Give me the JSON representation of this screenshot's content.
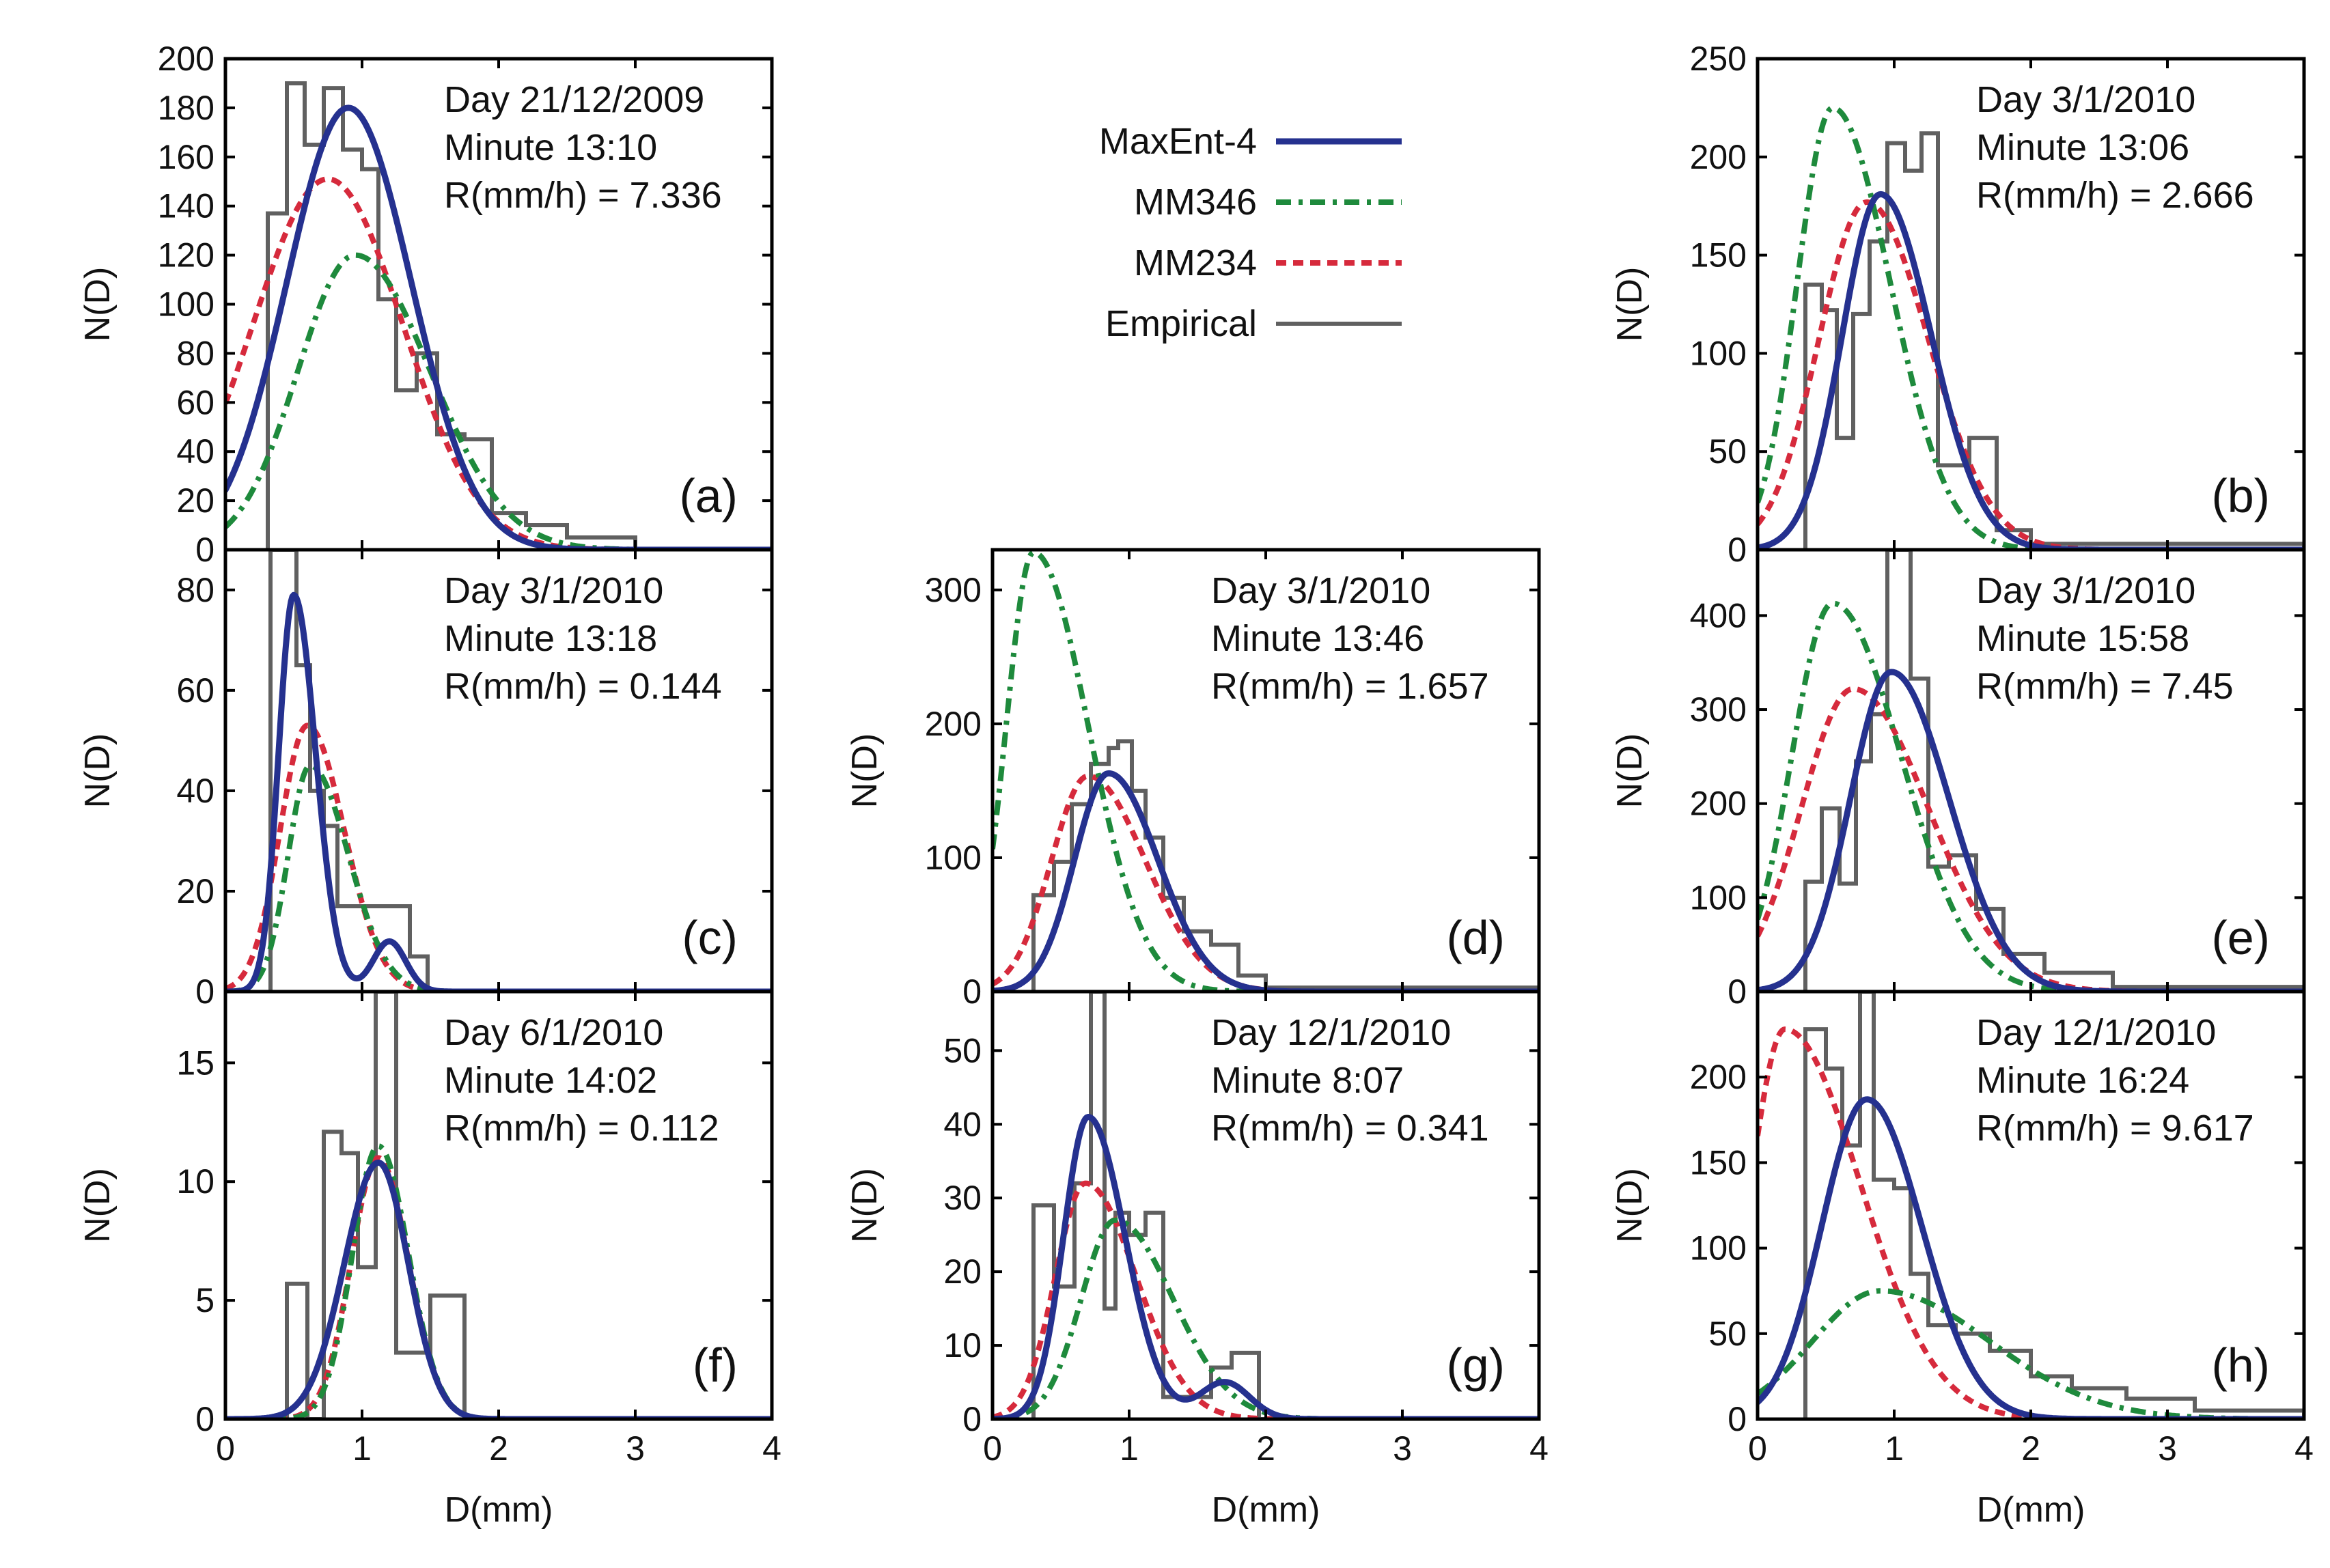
{
  "figure": {
    "xlabel": "D(mm)",
    "ylabel": "N(D)"
  },
  "colors": {
    "MaxEnt-4": "#25318f",
    "MM346": "#1e8a3c",
    "MM234": "#d62a3c",
    "Empirical": "#606060"
  },
  "legend": {
    "location": "top-center",
    "entries": [
      {
        "name": "MaxEnt-4",
        "style": "solid"
      },
      {
        "name": "MM346",
        "style": "dash-dot"
      },
      {
        "name": "MM234",
        "style": "dashed"
      },
      {
        "name": "Empirical",
        "style": "steps"
      }
    ]
  },
  "chart_data": [
    {
      "id": "a",
      "type": "line",
      "panel_label": "(a)",
      "annotation": [
        "Day 21/12/2009",
        "Minute 13:10",
        "R(mm/h) = 7.336"
      ],
      "xlim": [
        0,
        4
      ],
      "xticks": [
        0,
        1,
        2,
        3,
        4
      ],
      "show_xticklabels": false,
      "ylim": [
        0,
        200
      ],
      "yticks": [
        0,
        20,
        40,
        60,
        80,
        100,
        120,
        140,
        160,
        180,
        200
      ],
      "models": {
        "MaxEnt-4": {
          "mode": 0.9,
          "peak": 180,
          "sl": 0.45,
          "sr": 0.46
        },
        "MM346": {
          "mode": 0.95,
          "peak": 120,
          "sl": 0.42,
          "sr": 0.55
        },
        "MM234": {
          "mode": 0.75,
          "peak": 151,
          "sl": 0.55,
          "sr": 0.55
        }
      },
      "empirical": {
        "edges": [
          0.31,
          0.45,
          0.58,
          0.72,
          0.86,
          1.0,
          1.12,
          1.25,
          1.4,
          1.55,
          1.75,
          1.95,
          2.2,
          2.5,
          3.0,
          4.0
        ],
        "values": [
          137,
          190,
          165,
          188,
          163,
          155,
          102,
          65,
          80,
          47,
          45,
          15,
          10,
          5,
          0
        ]
      }
    },
    {
      "id": "b",
      "type": "line",
      "panel_label": "(b)",
      "annotation": [
        "Day 3/1/2010",
        "Minute 13:06",
        "R(mm/h) = 2.666"
      ],
      "xlim": [
        0,
        4
      ],
      "xticks": [
        0,
        1,
        2,
        3,
        4
      ],
      "show_xticklabels": false,
      "ylim": [
        0,
        250
      ],
      "yticks": [
        0,
        50,
        100,
        150,
        200,
        250
      ],
      "models": {
        "MaxEnt-4": {
          "mode": 0.9,
          "peak": 181,
          "sl": 0.28,
          "sr": 0.37
        },
        "MM346": {
          "mode": 0.55,
          "peak": 225,
          "sl": 0.26,
          "sr": 0.42
        },
        "MM234": {
          "mode": 0.8,
          "peak": 177,
          "sl": 0.35,
          "sr": 0.45
        }
      },
      "empirical": {
        "edges": [
          0.35,
          0.47,
          0.58,
          0.7,
          0.82,
          0.95,
          1.08,
          1.2,
          1.32,
          1.55,
          1.75,
          2.0,
          4.0
        ],
        "values": [
          135,
          122,
          57,
          120,
          157,
          207,
          193,
          212,
          43,
          57,
          10,
          3
        ]
      }
    },
    {
      "id": "c",
      "type": "line",
      "panel_label": "(c)",
      "annotation": [
        "Day 3/1/2010",
        "Minute 13:18",
        "R(mm/h) = 0.144"
      ],
      "xlim": [
        0,
        4
      ],
      "xticks": [
        0,
        1,
        2,
        3,
        4
      ],
      "show_xticklabels": false,
      "ylim": [
        0,
        88
      ],
      "yticks": [
        0,
        20,
        40,
        60,
        80
      ],
      "models": {
        "MaxEnt-4": {
          "mode": 0.5,
          "peak": 79,
          "sl": 0.11,
          "sr": 0.16
        },
        "MM346": {
          "mode": 0.62,
          "peak": 45,
          "sl": 0.16,
          "sr": 0.28
        },
        "MM234": {
          "mode": 0.6,
          "peak": 53,
          "sl": 0.2,
          "sr": 0.27
        }
      },
      "bump": {
        "center": 1.2,
        "amp": 10,
        "sigma": 0.12
      },
      "empirical": {
        "edges": [
          0.33,
          0.42,
          0.52,
          0.62,
          0.72,
          0.82,
          0.92,
          1.02,
          1.2,
          1.35,
          1.48,
          4.0
        ],
        "values": [
          88,
          88,
          65,
          40,
          33,
          17,
          17,
          17,
          17,
          7,
          0
        ]
      }
    },
    {
      "id": "d",
      "type": "line",
      "panel_label": "(d)",
      "annotation": [
        "Day 3/1/2010",
        "Minute 13:46",
        "R(mm/h) = 1.657"
      ],
      "xlim": [
        0,
        4
      ],
      "xticks": [
        0,
        1,
        2,
        3,
        4
      ],
      "show_xticklabels": false,
      "ylim": [
        0,
        330
      ],
      "yticks": [
        0,
        100,
        200,
        300
      ],
      "models": {
        "MaxEnt-4": {
          "mode": 0.85,
          "peak": 163,
          "sl": 0.25,
          "sr": 0.36
        },
        "MM346": {
          "mode": 0.3,
          "peak": 328,
          "sl": 0.2,
          "sr": 0.4
        },
        "MM234": {
          "mode": 0.7,
          "peak": 161,
          "sl": 0.27,
          "sr": 0.42
        }
      },
      "empirical": {
        "edges": [
          0.3,
          0.45,
          0.58,
          0.72,
          0.85,
          0.92,
          1.02,
          1.12,
          1.25,
          1.4,
          1.6,
          1.8,
          2.0,
          4.0
        ],
        "values": [
          72,
          97,
          140,
          170,
          182,
          187,
          150,
          115,
          70,
          45,
          35,
          12,
          3
        ]
      }
    },
    {
      "id": "e",
      "type": "line",
      "panel_label": "(e)",
      "annotation": [
        "Day 3/1/2010",
        "Minute 15:58",
        "R(mm/h) = 7.45"
      ],
      "xlim": [
        0,
        4
      ],
      "xticks": [
        0,
        1,
        2,
        3,
        4
      ],
      "show_xticklabels": false,
      "ylim": [
        0,
        470
      ],
      "yticks": [
        0,
        100,
        200,
        300,
        400
      ],
      "models": {
        "MaxEnt-4": {
          "mode": 0.98,
          "peak": 340,
          "sl": 0.3,
          "sr": 0.42
        },
        "MM346": {
          "mode": 0.55,
          "peak": 413,
          "sl": 0.3,
          "sr": 0.5
        },
        "MM234": {
          "mode": 0.7,
          "peak": 322,
          "sl": 0.38,
          "sr": 0.55
        }
      },
      "empirical": {
        "edges": [
          0.35,
          0.47,
          0.6,
          0.72,
          0.83,
          0.95,
          1.0,
          1.12,
          1.25,
          1.4,
          1.6,
          1.8,
          2.1,
          2.6,
          4.0
        ],
        "values": [
          117,
          195,
          115,
          245,
          295,
          470,
          470,
          333,
          133,
          145,
          88,
          40,
          20,
          5
        ]
      }
    },
    {
      "id": "f",
      "type": "line",
      "panel_label": "(f)",
      "annotation": [
        "Day 6/1/2010",
        "Minute 14:02",
        "R(mm/h) = 0.112"
      ],
      "xlim": [
        0,
        4
      ],
      "xticks": [
        0,
        1,
        2,
        3,
        4
      ],
      "show_xticklabels": true,
      "ylim": [
        0,
        18
      ],
      "yticks": [
        0,
        5,
        10,
        15
      ],
      "models": {
        "MaxEnt-4": {
          "mode": 1.12,
          "peak": 10.8,
          "sl": 0.25,
          "sr": 0.22
        },
        "MM346": {
          "mode": 1.12,
          "peak": 11.5,
          "sl": 0.19,
          "sr": 0.22
        },
        "MM234": {
          "mode": 1.12,
          "peak": 11.0,
          "sl": 0.2,
          "sr": 0.22
        }
      },
      "empirical": {
        "edges": [
          0.45,
          0.6,
          0.72,
          0.85,
          0.97,
          1.1,
          1.25,
          1.5,
          1.75,
          4.0
        ],
        "values": [
          5.7,
          0,
          12.1,
          11.2,
          6.4,
          18,
          2.8,
          5.2,
          0
        ]
      }
    },
    {
      "id": "g",
      "type": "line",
      "panel_label": "(g)",
      "annotation": [
        "Day 12/1/2010",
        "Minute 8:07",
        "R(mm/h) = 0.341"
      ],
      "xlim": [
        0,
        4
      ],
      "xticks": [
        0,
        1,
        2,
        3,
        4
      ],
      "show_xticklabels": true,
      "ylim": [
        0,
        58
      ],
      "yticks": [
        0,
        10,
        20,
        30,
        40,
        50
      ],
      "models": {
        "MaxEnt-4": {
          "mode": 0.7,
          "peak": 41,
          "sl": 0.18,
          "sr": 0.27
        },
        "MM346": {
          "mode": 0.9,
          "peak": 27,
          "sl": 0.25,
          "sr": 0.42
        },
        "MM234": {
          "mode": 0.68,
          "peak": 32,
          "sl": 0.22,
          "sr": 0.37
        }
      },
      "bump": {
        "center": 1.7,
        "amp": 5,
        "sigma": 0.18
      },
      "empirical": {
        "edges": [
          0.3,
          0.45,
          0.6,
          0.72,
          0.82,
          0.9,
          1.0,
          1.12,
          1.25,
          1.4,
          1.6,
          1.75,
          1.95,
          4.0
        ],
        "values": [
          29,
          18,
          32,
          58,
          15,
          28,
          25,
          28,
          3,
          3,
          7,
          9,
          0
        ]
      }
    },
    {
      "id": "h",
      "type": "line",
      "panel_label": "(h)",
      "annotation": [
        "Day 12/1/2010",
        "Minute 16:24",
        "R(mm/h) = 9.617"
      ],
      "xlim": [
        0,
        4
      ],
      "xticks": [
        0,
        1,
        2,
        3,
        4
      ],
      "show_xticklabels": true,
      "ylim": [
        0,
        250
      ],
      "yticks": [
        0,
        50,
        100,
        150,
        200
      ],
      "models": {
        "MaxEnt-4": {
          "mode": 0.8,
          "peak": 187,
          "sl": 0.33,
          "sr": 0.4
        },
        "MM346": {
          "mode": 0.9,
          "peak": 75,
          "sl": 0.5,
          "sr": 0.8
        },
        "MM234": {
          "mode": 0.2,
          "peak": 228,
          "sl": 0.25,
          "sr": 0.55
        }
      },
      "empirical": {
        "edges": [
          0.35,
          0.5,
          0.62,
          0.75,
          0.85,
          1.0,
          1.12,
          1.25,
          1.45,
          1.7,
          2.0,
          2.3,
          2.7,
          3.2,
          4.0
        ],
        "values": [
          228,
          205,
          160,
          250,
          140,
          135,
          85,
          55,
          50,
          40,
          25,
          18,
          12,
          5
        ]
      }
    }
  ]
}
